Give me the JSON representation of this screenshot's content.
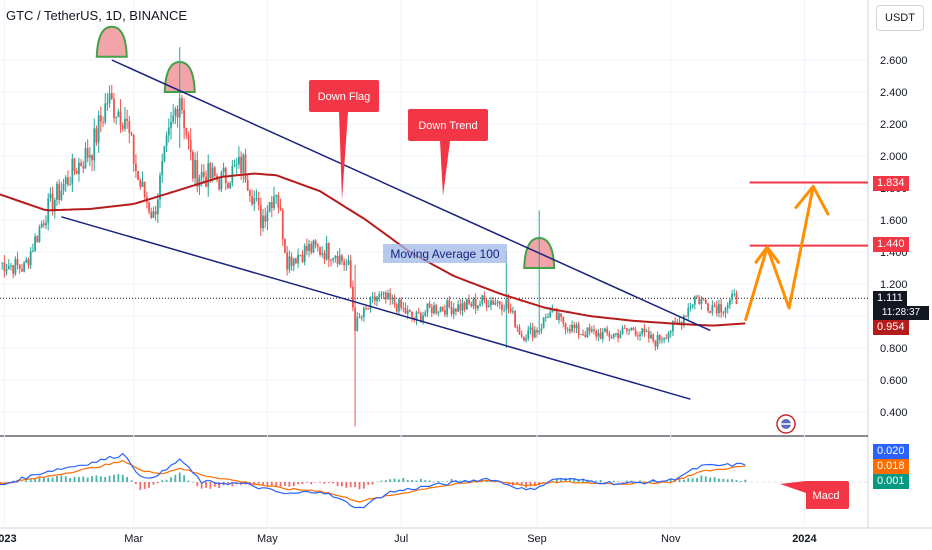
{
  "header": {
    "title": "GTC / TetherUS, 1D, BINANCE",
    "currency_button": "USDT"
  },
  "price_labels": {
    "last_price": "1.111",
    "countdown": "11:28:37",
    "ma_price": "0.954",
    "target_1": "1.440",
    "target_2": "1.834"
  },
  "macd_labels": {
    "macd_value": "0.020",
    "signal_value": "0.018",
    "histogram_value": "0.001"
  },
  "annotations": {
    "down_flag": "Down Flag",
    "down_trend": "Down Trend",
    "moving_average": "Moving Average 100",
    "macd": "Macd"
  },
  "colors": {
    "candle_up": "#26a69a",
    "candle_down": "#ef5350",
    "ma100": "#b71c1c",
    "trendline": "#1a237e",
    "projection": "#ff8f00",
    "target_line": "#f23645",
    "callout": "#f23645",
    "macd_line": "#2962ff",
    "signal_line": "#ff6d00",
    "hump_fill": "#f2a4a8",
    "hump_stroke": "#43a047"
  },
  "chart_data": {
    "type": "candlestick",
    "ylim": [
      0.3,
      2.75
    ],
    "yticks": [
      0.4,
      0.6,
      0.8,
      1.0,
      1.2,
      1.4,
      1.6,
      1.8,
      2.0,
      2.2,
      2.4,
      2.6
    ],
    "ytick_labels": [
      "0.400",
      "0.600",
      "0.800",
      "1.000",
      "1.200",
      "1.400",
      "1.600",
      "1.800",
      "2.000",
      "2.200",
      "2.400",
      "2.600"
    ],
    "xtick_labels": [
      "2023",
      "Mar",
      "May",
      "Jul",
      "Sep",
      "Nov",
      "2024"
    ],
    "xtick_dates": [
      "2023-01-01",
      "2023-03-01",
      "2023-05-01",
      "2023-07-01",
      "2023-09-01",
      "2023-11-01",
      "2024-01-01"
    ],
    "x_range": [
      "2022-12-30",
      "2024-01-30"
    ],
    "price_path": [
      [
        "2022-12-30",
        1.33
      ],
      [
        "2023-01-10",
        1.3
      ],
      [
        "2023-01-20",
        1.65
      ],
      [
        "2023-02-01",
        1.9
      ],
      [
        "2023-02-10",
        2.05
      ],
      [
        "2023-02-17",
        2.35
      ],
      [
        "2023-02-25",
        2.25
      ],
      [
        "2023-03-03",
        1.85
      ],
      [
        "2023-03-10",
        1.62
      ],
      [
        "2023-03-16",
        2.05
      ],
      [
        "2023-03-22",
        2.4
      ],
      [
        "2023-03-28",
        1.9
      ],
      [
        "2023-04-10",
        1.85
      ],
      [
        "2023-04-20",
        1.95
      ],
      [
        "2023-04-28",
        1.6
      ],
      [
        "2023-05-05",
        1.8
      ],
      [
        "2023-05-10",
        1.35
      ],
      [
        "2023-05-20",
        1.42
      ],
      [
        "2023-06-01",
        1.4
      ],
      [
        "2023-06-07",
        1.3
      ],
      [
        "2023-06-10",
        0.94
      ],
      [
        "2023-06-20",
        1.12
      ],
      [
        "2023-06-28",
        1.08
      ],
      [
        "2023-07-07",
        0.98
      ],
      [
        "2023-07-15",
        1.05
      ],
      [
        "2023-07-30",
        1.06
      ],
      [
        "2023-08-10",
        1.1
      ],
      [
        "2023-08-18",
        1.08
      ],
      [
        "2023-08-25",
        0.88
      ],
      [
        "2023-09-02",
        0.92
      ],
      [
        "2023-09-06",
        1.02
      ],
      [
        "2023-09-20",
        0.9
      ],
      [
        "2023-10-05",
        0.88
      ],
      [
        "2023-10-15",
        0.92
      ],
      [
        "2023-10-25",
        0.84
      ],
      [
        "2023-11-05",
        0.96
      ],
      [
        "2023-11-12",
        1.12
      ],
      [
        "2023-11-18",
        1.07
      ],
      [
        "2023-11-25",
        1.06
      ],
      [
        "2023-12-01",
        1.11
      ]
    ],
    "extreme_wicks": [
      {
        "date": "2023-06-10",
        "low": 0.31,
        "high": 1.32
      },
      {
        "date": "2023-03-22",
        "low": 2.05,
        "high": 2.68
      },
      {
        "date": "2023-09-02",
        "low": 0.95,
        "high": 1.66
      },
      {
        "date": "2023-08-18",
        "low": 0.8,
        "high": 1.4
      }
    ],
    "series": [
      {
        "type": "line",
        "points": [
          [
            "2022-12-30",
            1.76
          ],
          [
            "2023-01-20",
            1.66
          ],
          [
            "2023-02-10",
            1.67
          ],
          [
            "2023-03-01",
            1.7
          ],
          [
            "2023-03-20",
            1.78
          ],
          [
            "2023-04-10",
            1.87
          ],
          [
            "2023-04-25",
            1.89
          ],
          [
            "2023-05-05",
            1.88
          ],
          [
            "2023-05-25",
            1.78
          ],
          [
            "2023-06-15",
            1.6
          ],
          [
            "2023-07-05",
            1.4
          ],
          [
            "2023-07-25",
            1.25
          ],
          [
            "2023-08-15",
            1.14
          ],
          [
            "2023-09-05",
            1.05
          ],
          [
            "2023-09-25",
            1.0
          ],
          [
            "2023-10-15",
            0.97
          ],
          [
            "2023-11-05",
            0.95
          ],
          [
            "2023-11-20",
            0.94
          ],
          [
            "2023-12-05",
            0.954
          ]
        ]
      }
    ],
    "trendlines": [
      {
        "from": [
          "2023-02-19",
          2.6
        ],
        "to": [
          "2023-11-19",
          0.91
        ]
      },
      {
        "from": [
          "2023-01-27",
          1.62
        ],
        "to": [
          "2023-11-10",
          0.48
        ]
      }
    ],
    "target_levels": [
      1.44,
      1.834
    ],
    "projection_path": [
      [
        "2023-12-05",
        0.97
      ],
      [
        "2023-12-15",
        1.43
      ],
      [
        "2023-12-25",
        1.05
      ],
      [
        "2024-01-05",
        1.81
      ],
      [
        "2024-01-12",
        1.63
      ]
    ],
    "macd": {
      "ylim": [
        -0.05,
        0.05
      ],
      "macd_line": [
        [
          "2022-12-30",
          -0.004
        ],
        [
          "2023-01-20",
          0.012
        ],
        [
          "2023-02-10",
          0.022
        ],
        [
          "2023-02-25",
          0.032
        ],
        [
          "2023-03-05",
          0.002
        ],
        [
          "2023-03-15",
          0.012
        ],
        [
          "2023-03-22",
          0.026
        ],
        [
          "2023-04-01",
          0.0
        ],
        [
          "2023-04-20",
          -0.002
        ],
        [
          "2023-05-10",
          -0.014
        ],
        [
          "2023-05-25",
          -0.01
        ],
        [
          "2023-06-12",
          -0.03
        ],
        [
          "2023-06-25",
          -0.012
        ],
        [
          "2023-07-15",
          -0.004
        ],
        [
          "2023-08-10",
          0.004
        ],
        [
          "2023-08-28",
          -0.01
        ],
        [
          "2023-09-10",
          0.004
        ],
        [
          "2023-10-10",
          -0.002
        ],
        [
          "2023-11-01",
          0.002
        ],
        [
          "2023-11-15",
          0.018
        ],
        [
          "2023-12-05",
          0.02
        ]
      ],
      "signal_line": [
        [
          "2022-12-30",
          -0.002
        ],
        [
          "2023-01-20",
          0.006
        ],
        [
          "2023-02-10",
          0.016
        ],
        [
          "2023-02-25",
          0.024
        ],
        [
          "2023-03-05",
          0.012
        ],
        [
          "2023-03-15",
          0.01
        ],
        [
          "2023-03-22",
          0.016
        ],
        [
          "2023-04-01",
          0.008
        ],
        [
          "2023-04-20",
          0.0
        ],
        [
          "2023-05-10",
          -0.008
        ],
        [
          "2023-05-25",
          -0.01
        ],
        [
          "2023-06-12",
          -0.022
        ],
        [
          "2023-06-25",
          -0.016
        ],
        [
          "2023-07-15",
          -0.006
        ],
        [
          "2023-08-10",
          0.002
        ],
        [
          "2023-08-28",
          -0.004
        ],
        [
          "2023-09-10",
          0.0
        ],
        [
          "2023-10-10",
          -0.002
        ],
        [
          "2023-11-01",
          0.0
        ],
        [
          "2023-11-15",
          0.012
        ],
        [
          "2023-12-05",
          0.018
        ]
      ]
    }
  }
}
